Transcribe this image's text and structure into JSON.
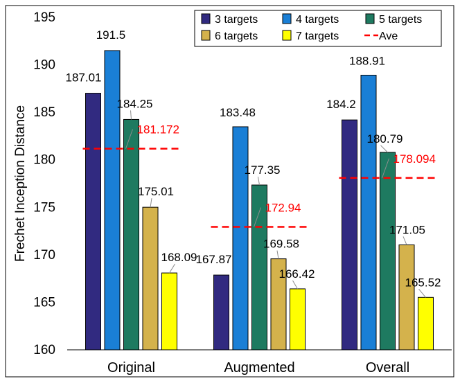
{
  "chart_data": {
    "type": "bar",
    "title": "",
    "xlabel": "",
    "ylabel": "Frechet Inception Distance",
    "ylim": [
      160,
      195
    ],
    "yticks": [
      "160",
      "165",
      "170",
      "175",
      "180",
      "185",
      "190",
      "195"
    ],
    "grid": false,
    "legend_position": "top-right",
    "categories": [
      "Original",
      "Augmented",
      "Overall"
    ],
    "series": [
      {
        "name": "3 targets",
        "color": "#312a80",
        "values": [
          187.01,
          167.87,
          184.2
        ],
        "labels": [
          "187.01",
          "167.87",
          "184.2"
        ]
      },
      {
        "name": "4 targets",
        "color": "#1a7fd6",
        "values": [
          191.5,
          183.48,
          188.91
        ],
        "labels": [
          "191.5",
          "183.48",
          "188.91"
        ]
      },
      {
        "name": "5 targets",
        "color": "#1e7a60",
        "values": [
          184.25,
          177.35,
          180.79
        ],
        "labels": [
          "184.25",
          "177.35",
          "180.79"
        ]
      },
      {
        "name": "6 targets",
        "color": "#d4b24c",
        "values": [
          175.01,
          169.58,
          171.05
        ],
        "labels": [
          "175.01",
          "169.58",
          "171.05"
        ]
      },
      {
        "name": "7 targets",
        "color": "#ffff00",
        "values": [
          168.09,
          166.42,
          165.52
        ],
        "labels": [
          "168.09",
          "166.42",
          "165.52"
        ]
      }
    ],
    "average": {
      "name": "Ave",
      "color": "#ff0000",
      "values": [
        181.172,
        172.94,
        178.094
      ],
      "labels": [
        "181.172",
        "172.94",
        "178.094"
      ]
    }
  }
}
